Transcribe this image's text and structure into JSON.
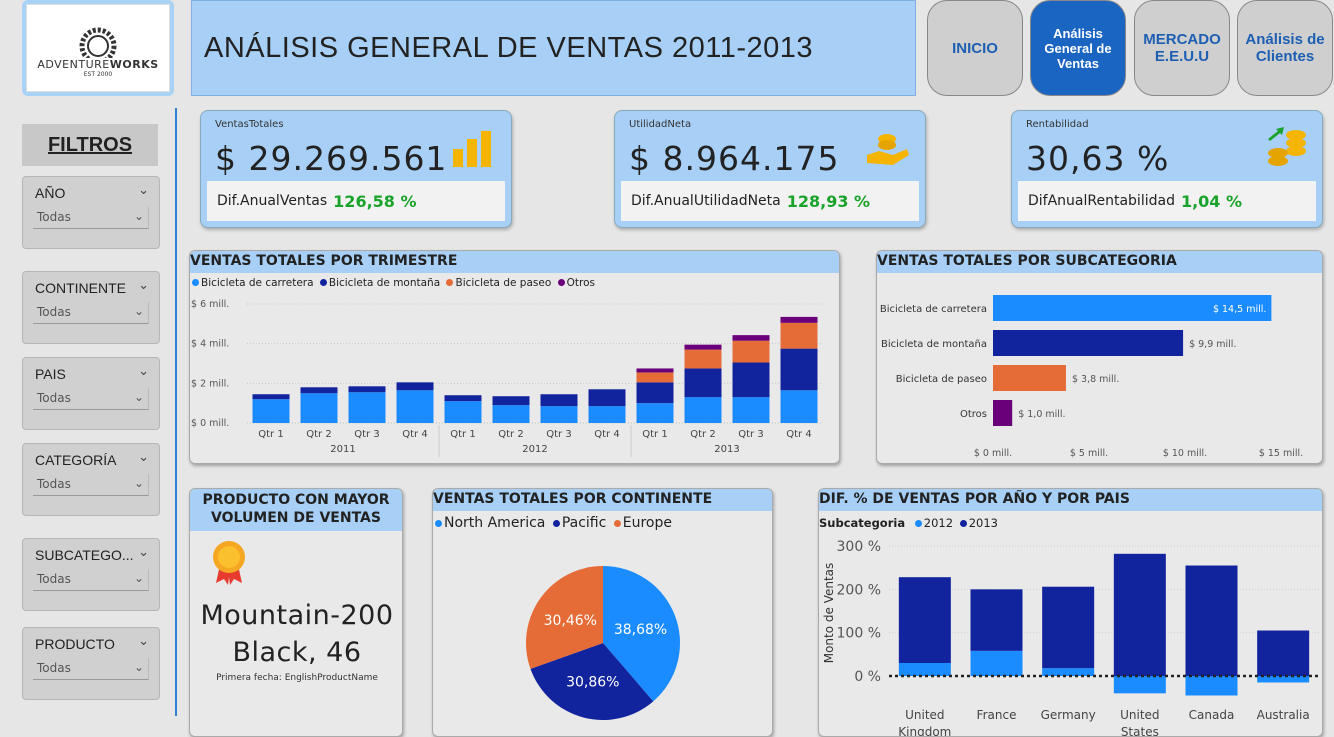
{
  "brand": {
    "logo_text_a": "ADVENTURE",
    "logo_text_b": "WORKS",
    "logo_badge": "EST 2000"
  },
  "header": {
    "title": "ANÁLISIS GENERAL DE VENTAS  2011-2013"
  },
  "nav": [
    {
      "label": "INICIO",
      "active": false
    },
    {
      "label": "Análisis General de Ventas",
      "active": true
    },
    {
      "label": "MERCADO E.E.U.U",
      "active": false
    },
    {
      "label": "Análisis de Clientes",
      "active": false
    }
  ],
  "filters": {
    "title": "FILTROS",
    "slicers": [
      {
        "label": "AÑO",
        "value": "Todas"
      },
      {
        "label": "CONTINENTE",
        "value": "Todas"
      },
      {
        "label": "PAIS",
        "value": "Todas"
      },
      {
        "label": "CATEGORÍA",
        "value": "Todas"
      },
      {
        "label": "SUBCATEGO...",
        "value": "Todas"
      },
      {
        "label": "PRODUCTO",
        "value": "Todas"
      }
    ]
  },
  "kpis": [
    {
      "label": "VentasTotales",
      "value": "$ 29.269.561",
      "sub_label": "Dif.AnualVentas",
      "sub_value": "126,58 %",
      "icon": "coin-stacks-icon"
    },
    {
      "label": "UtilidadNeta",
      "value": "$ 8.964.175",
      "sub_label": "Dif.AnualUtilidadNeta",
      "sub_value": "128,93 %",
      "icon": "hand-coins-icon"
    },
    {
      "label": "Rentabilidad",
      "value": "30,63 %",
      "sub_label": "DifAnualRentabilidad",
      "sub_value": "1,04 %",
      "icon": "coins-growth-icon"
    }
  ],
  "colors": {
    "carretera": "#1a8cff",
    "montana": "#12239e",
    "paseo": "#e66c37",
    "otros": "#6b007b",
    "y2012": "#1a8cff",
    "y2013": "#12239e",
    "header_blue": "#a8d0f7",
    "green": "#1aa32a"
  },
  "quarter_chart": {
    "title": "VENTAS TOTALES POR TRIMESTRE",
    "legend": [
      "Bicicleta de carretera",
      "Bicicleta de montaña",
      "Bicicleta de paseo",
      "Otros"
    ],
    "y_ticks": [
      "$ 0 mill.",
      "$ 2 mill.",
      "$ 4 mill.",
      "$ 6 mill."
    ],
    "years": [
      "2011",
      "2012",
      "2013"
    ]
  },
  "subcat_chart": {
    "title": "VENTAS TOTALES POR SUBCATEGORIA",
    "x_ticks": [
      "$ 0 mill.",
      "$ 5 mill.",
      "$ 10 mill.",
      "$ 15 mill."
    ]
  },
  "product": {
    "title": "PRODUCTO CON MAYOR VOLUMEN DE VENTAS",
    "name_line1": "Mountain-200",
    "name_line2": "Black, 46",
    "caption": "Primera fecha: EnglishProductName"
  },
  "continent_chart": {
    "title": "VENTAS TOTALES POR CONTINENTE",
    "legend": [
      "North America",
      "Pacific",
      "Europe"
    ]
  },
  "country_chart": {
    "title": "DIF. % DE VENTAS POR AÑO Y POR PAIS",
    "legend_title": "Subcategoria",
    "legend": [
      "2012",
      "2013"
    ],
    "ylabel": "Monto de Ventas",
    "y_ticks": [
      "0 %",
      "100 %",
      "200 %",
      "300 %"
    ]
  },
  "chart_data": [
    {
      "type": "bar",
      "title": "VENTAS TOTALES POR TRIMESTRE",
      "stacked": true,
      "categories": [
        "Qtr 1",
        "Qtr 2",
        "Qtr 3",
        "Qtr 4",
        "Qtr 1",
        "Qtr 2",
        "Qtr 3",
        "Qtr 4",
        "Qtr 1",
        "Qtr 2",
        "Qtr 3",
        "Qtr 4"
      ],
      "groups": [
        "2011",
        "2011",
        "2011",
        "2011",
        "2012",
        "2012",
        "2012",
        "2012",
        "2013",
        "2013",
        "2013",
        "2013"
      ],
      "series": [
        {
          "name": "Bicicleta de carretera",
          "values": [
            1.2,
            1.5,
            1.55,
            1.65,
            1.1,
            0.9,
            0.85,
            0.85,
            1.0,
            1.3,
            1.3,
            1.65
          ]
        },
        {
          "name": "Bicicleta de montaña",
          "values": [
            0.25,
            0.3,
            0.3,
            0.4,
            0.3,
            0.45,
            0.6,
            0.85,
            1.05,
            1.45,
            1.75,
            2.1
          ]
        },
        {
          "name": "Bicicleta de paseo",
          "values": [
            0,
            0,
            0,
            0,
            0,
            0,
            0,
            0,
            0.5,
            0.95,
            1.1,
            1.3
          ]
        },
        {
          "name": "Otros",
          "values": [
            0,
            0,
            0,
            0,
            0,
            0,
            0,
            0,
            0.2,
            0.25,
            0.28,
            0.3
          ]
        }
      ],
      "ylim": [
        0,
        6
      ]
    },
    {
      "type": "bar",
      "orientation": "horizontal",
      "title": "VENTAS TOTALES POR SUBCATEGORIA",
      "categories": [
        "Bicicleta de carretera",
        "Bicicleta de montaña",
        "Bicicleta de paseo",
        "Otros"
      ],
      "values": [
        14.5,
        9.9,
        3.8,
        1.0
      ],
      "labels": [
        "$ 14,5 mill.",
        "$ 9,9 mill.",
        "$ 3,8 mill.",
        "$ 1,0 mill."
      ],
      "xlim": [
        0,
        15
      ]
    },
    {
      "type": "pie",
      "title": "VENTAS TOTALES POR CONTINENTE",
      "categories": [
        "North America",
        "Pacific",
        "Europe"
      ],
      "values": [
        38.68,
        30.86,
        30.46
      ],
      "labels": [
        "38,68%",
        "30,86%",
        "30,46%"
      ]
    },
    {
      "type": "bar",
      "title": "DIF. % DE VENTAS POR AÑO Y POR PAIS",
      "stacked": true,
      "categories": [
        "United Kingdom",
        "France",
        "Germany",
        "United States",
        "Canada",
        "Australia"
      ],
      "category_lines": [
        [
          "United",
          "Kingdom"
        ],
        [
          "France"
        ],
        [
          "Germany"
        ],
        [
          "United",
          "States"
        ],
        [
          "Canada"
        ],
        [
          "Australia"
        ]
      ],
      "series": [
        {
          "name": "2012",
          "values": [
            30,
            58,
            18,
            -40,
            -45,
            -15
          ]
        },
        {
          "name": "2013",
          "values": [
            198,
            142,
            188,
            282,
            255,
            105
          ]
        }
      ],
      "ylim": [
        -50,
        300
      ],
      "ylabel": "Monto de Ventas"
    }
  ]
}
